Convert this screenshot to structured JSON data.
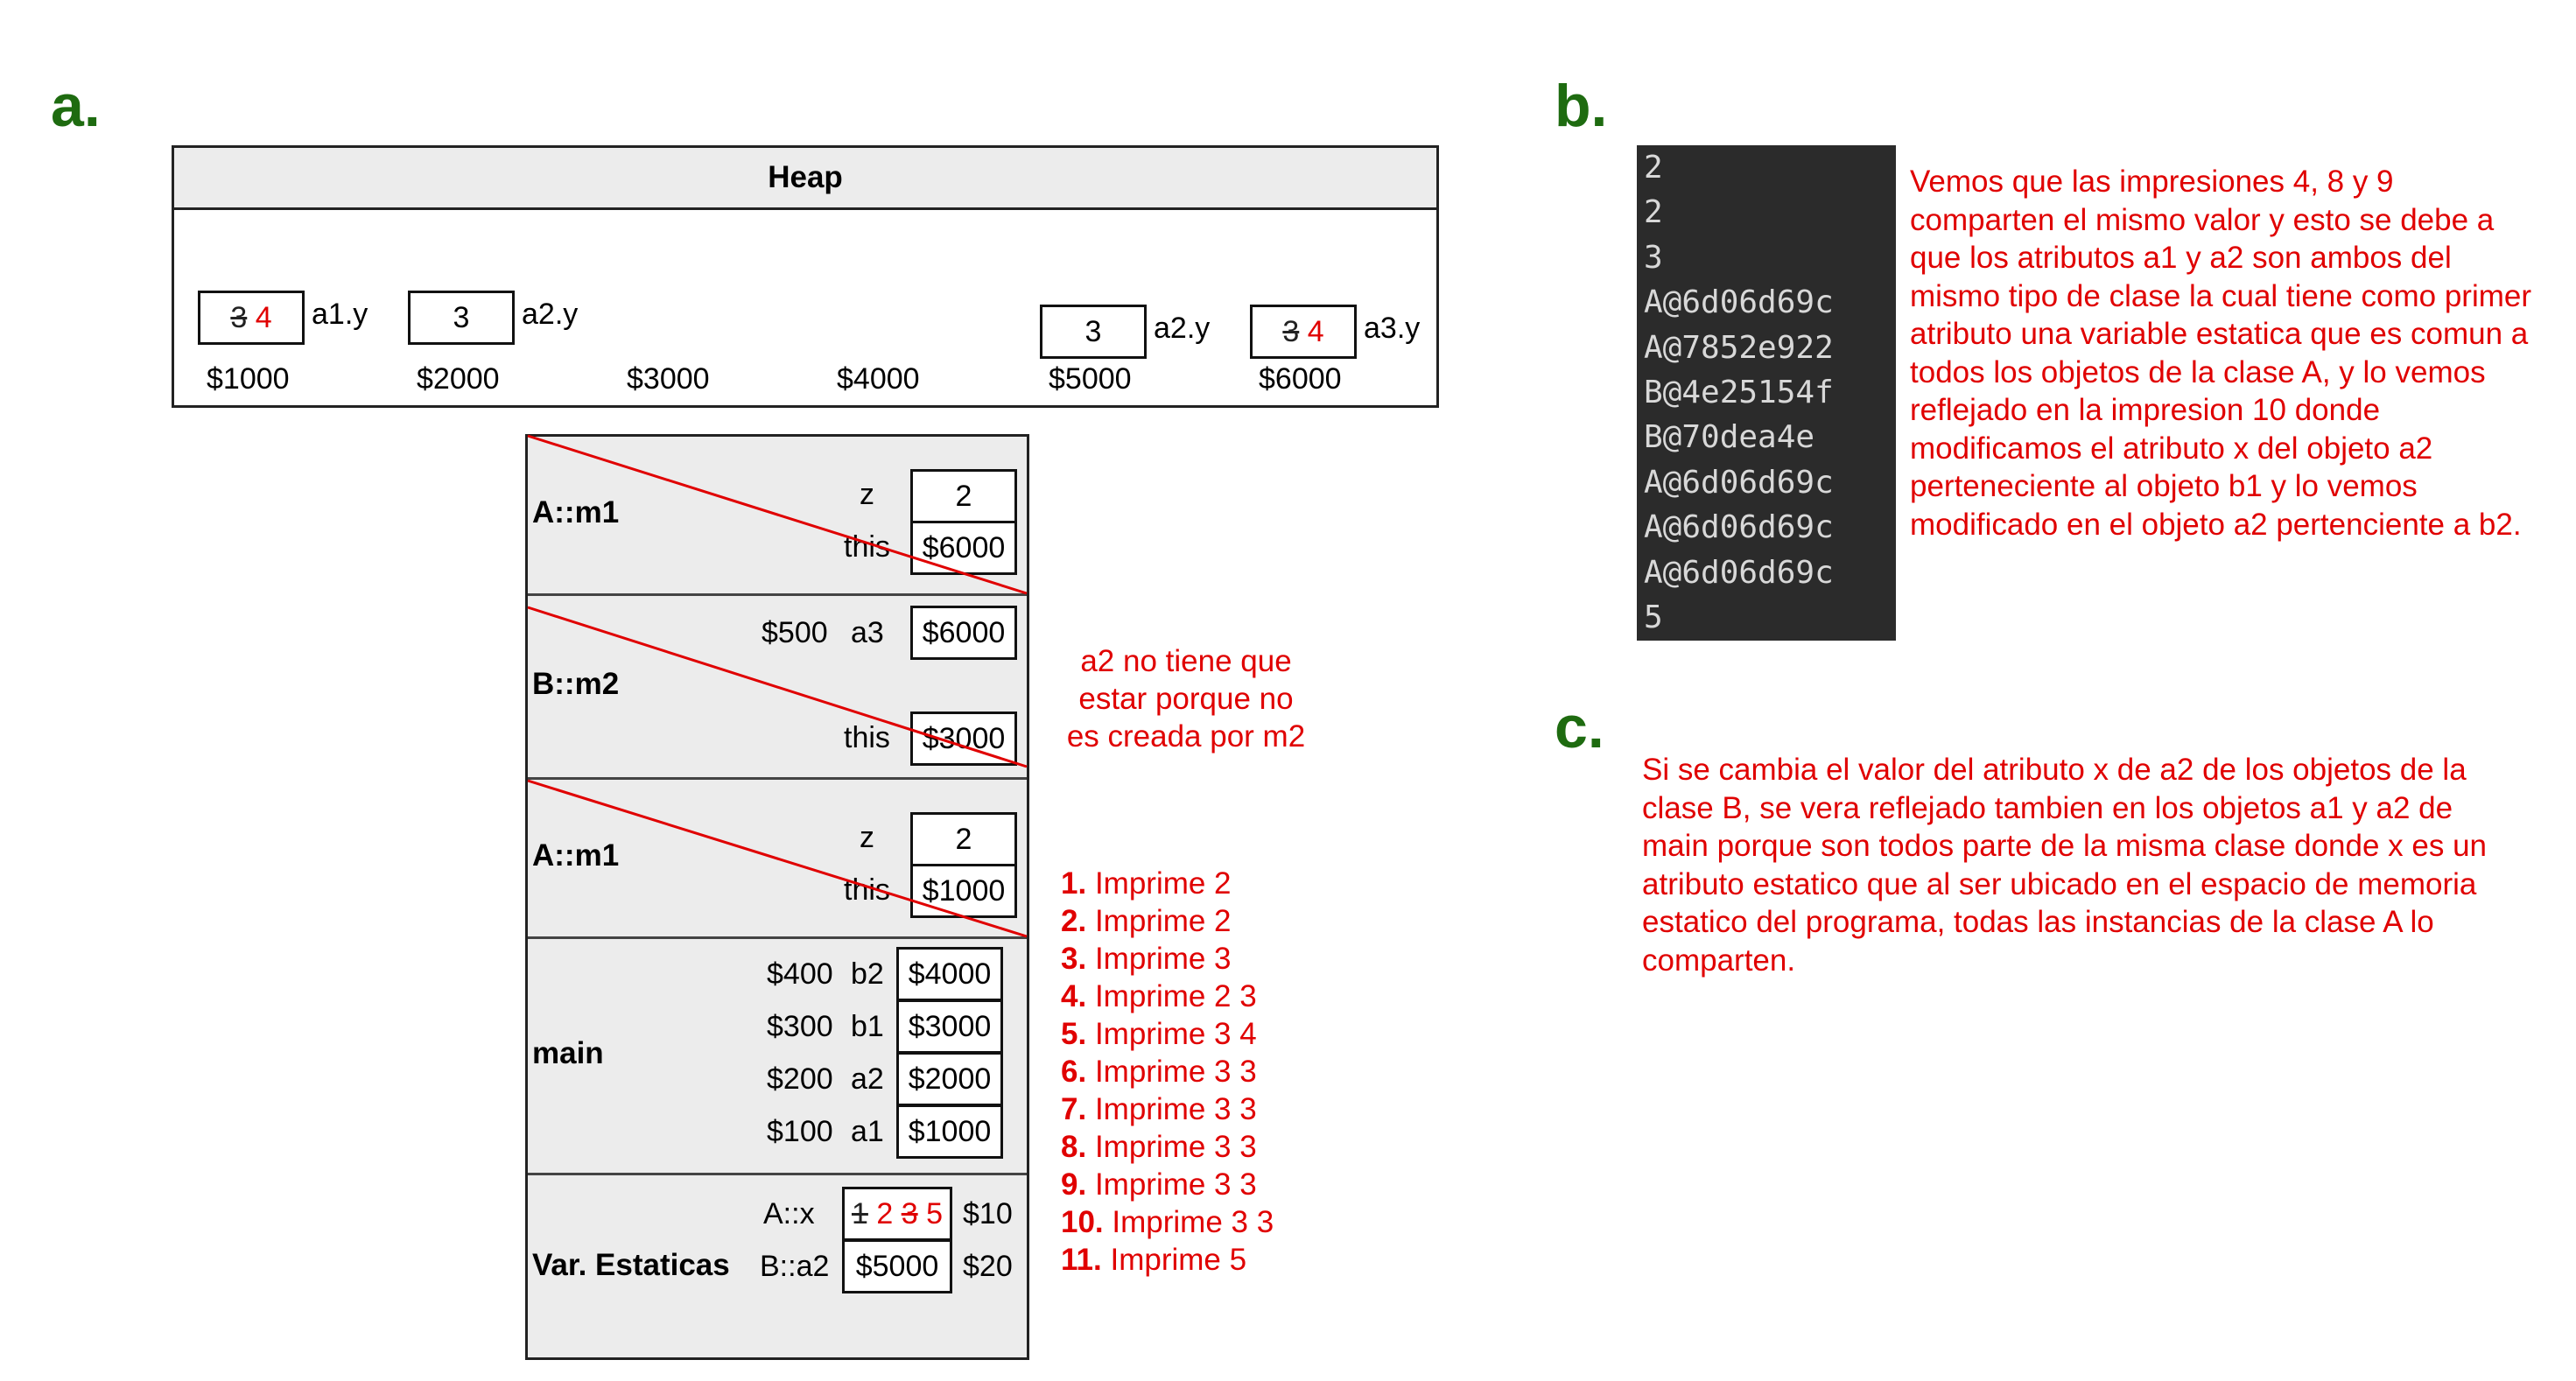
{
  "labels": {
    "a": "a.",
    "b": "b.",
    "c": "c."
  },
  "heap": {
    "title": "Heap",
    "slots": [
      {
        "old": "3",
        "new": "4",
        "var": "a1.y",
        "addr": "$1000"
      },
      {
        "value": "3",
        "var": "a2.y",
        "addr": "$2000"
      },
      {
        "addr": "$3000"
      },
      {
        "addr": "$4000"
      },
      {
        "value": "3",
        "var": "a2.y",
        "addr": "$5000"
      },
      {
        "old": "3",
        "new": "4",
        "var": "a3.y",
        "addr": "$6000"
      }
    ]
  },
  "stack": {
    "frame1": {
      "name": "A::m1",
      "z_label": "z",
      "z_value": "2",
      "this_label": "this",
      "this_value": "$6000"
    },
    "frame2": {
      "name": "B::m2",
      "a3_addr": "$500",
      "a3_label": "a3",
      "a3_value": "$6000",
      "this_label": "this",
      "this_value": "$3000"
    },
    "frame3": {
      "name": "A::m1",
      "z_label": "z",
      "z_value": "2",
      "this_label": "this",
      "this_value": "$1000"
    },
    "main": {
      "name": "main",
      "vars": [
        {
          "addr": "$400",
          "label": "b2",
          "value": "$4000"
        },
        {
          "addr": "$300",
          "label": "b1",
          "value": "$3000"
        },
        {
          "addr": "$200",
          "label": "a2",
          "value": "$2000"
        },
        {
          "addr": "$100",
          "label": "a1",
          "value": "$1000"
        }
      ]
    },
    "statics": {
      "name": "Var. Estaticas",
      "ax_label": "A::x",
      "ax_v1": "1",
      "ax_v2": "2",
      "ax_v3": "3",
      "ax_v4": "5",
      "ax_addr": "$10",
      "ba2_label": "B::a2",
      "ba2_value": "$5000",
      "ba2_addr": "$20"
    }
  },
  "note_a2": {
    "l1": "a2 no tiene que",
    "l2": "estar porque no",
    "l3": "es creada por m2"
  },
  "prints": [
    {
      "n": "1.",
      "text": "Imprime 2"
    },
    {
      "n": "2.",
      "text": "Imprime 2"
    },
    {
      "n": "3.",
      "text": "Imprime 3"
    },
    {
      "n": "4.",
      "text": "Imprime 2 3"
    },
    {
      "n": "5.",
      "text": "Imprime 3 4"
    },
    {
      "n": "6.",
      "text": "Imprime 3 3"
    },
    {
      "n": "7.",
      "text": "Imprime 3 3"
    },
    {
      "n": "8.",
      "text": "Imprime 3 3"
    },
    {
      "n": "9.",
      "text": "Imprime 3 3"
    },
    {
      "n": "10.",
      "text": "Imprime 3 3"
    },
    {
      "n": "11.",
      "text": "Imprime 5"
    }
  ],
  "terminal_lines": [
    "2",
    "2",
    "3",
    "A@6d06d69c",
    "A@7852e922",
    "B@4e25154f",
    "B@70dea4e",
    "A@6d06d69c",
    "A@6d06d69c",
    "A@6d06d69c",
    "5"
  ],
  "explain_b": [
    "Vemos que las impresiones 4, 8 y 9",
    "comparten el mismo valor y esto se debe a",
    "que los atributos a1 y a2 son ambos del",
    "mismo tipo de clase la cual tiene como primer",
    "atributo una variable estatica que es comun a",
    "todos los objetos de la clase A, y lo vemos",
    "reflejado en la impresion 10 donde",
    "modificamos el atributo x del objeto a2",
    "perteneciente al objeto b1 y lo vemos",
    "modificado en el objeto a2 pertenciente a b2."
  ],
  "explain_c": [
    "Si se cambia el valor del atributo x de a2 de los objetos de la",
    "clase B, se vera reflejado tambien en los objetos a1 y a2 de",
    "main porque son todos parte de la misma clase donde x es un",
    "atributo estatico que al ser ubicado en el espacio de memoria",
    "estatico del programa, todas las instancias de la clase A lo",
    "comparten."
  ],
  "colors": {
    "accent_green": "#1e6b10",
    "annotation_red": "#e00000",
    "frame_gray": "#ececec",
    "terminal_bg": "#2b2b2b"
  }
}
